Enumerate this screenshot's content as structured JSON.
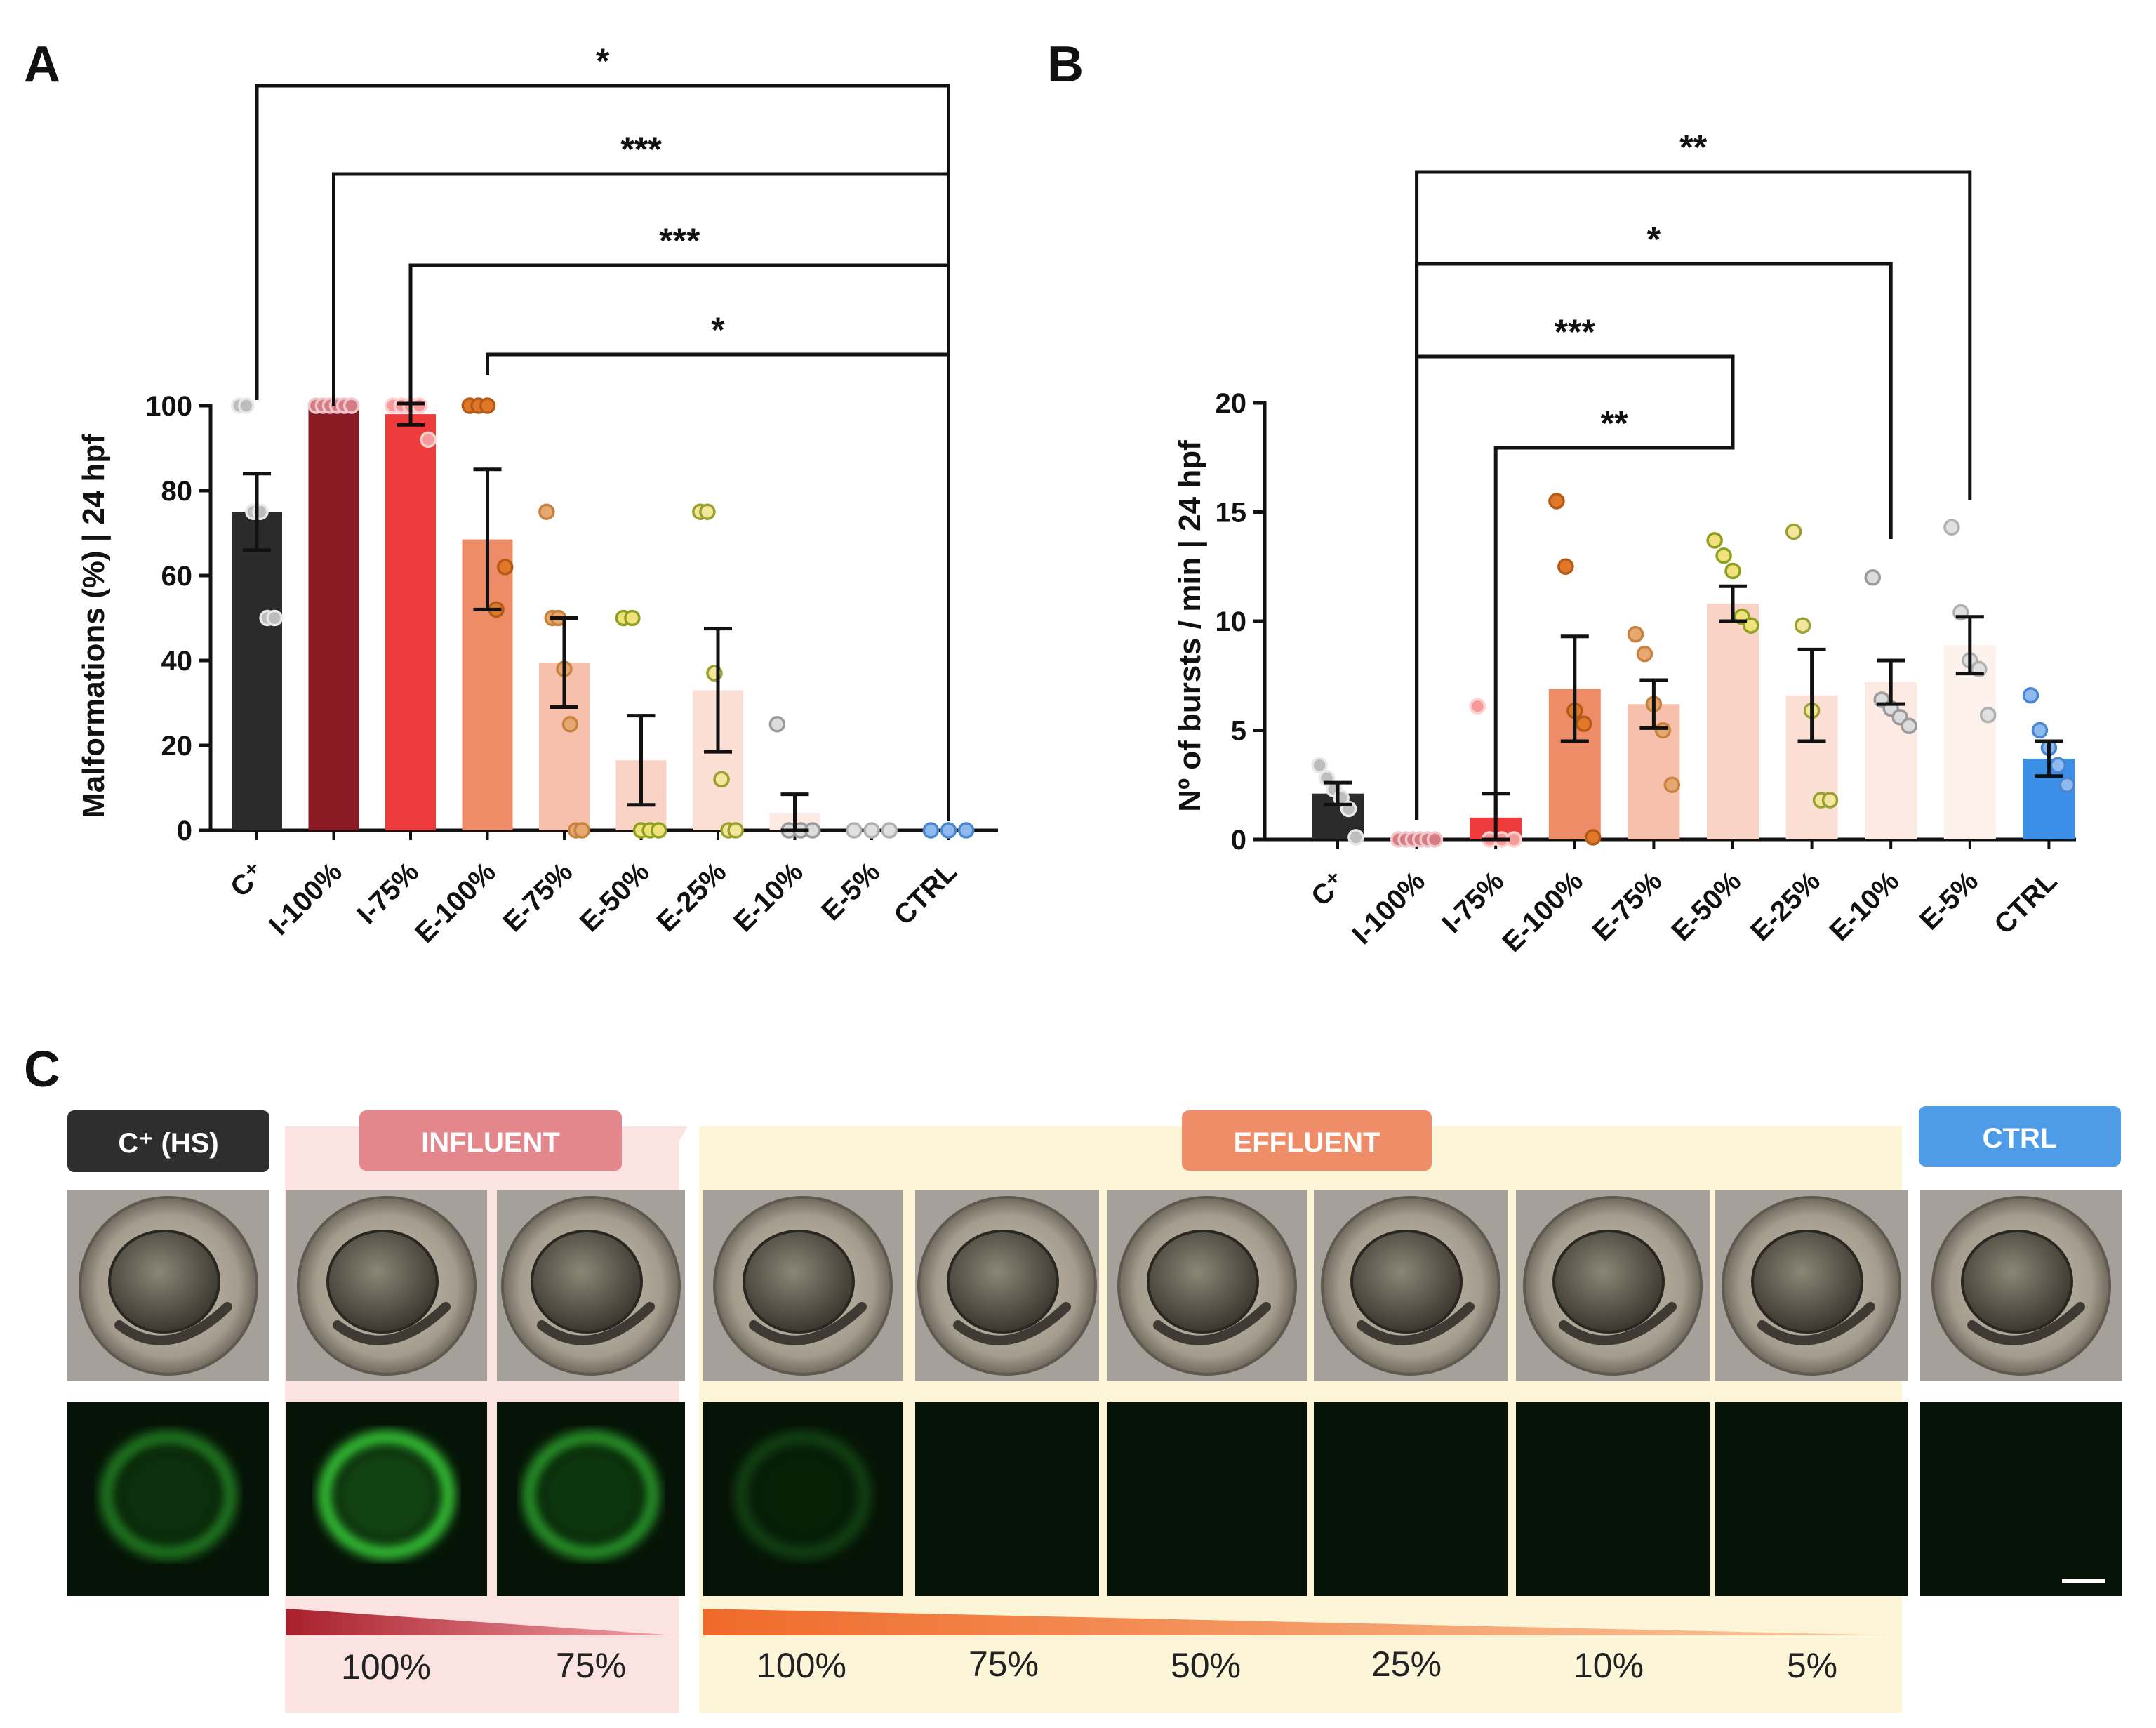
{
  "colors": {
    "cpos": "#2b2b2b",
    "i100": "#8b1a24",
    "i75": "#ee3b3b",
    "e100": "#ef8c68",
    "e75": "#f6c0ad",
    "e50": "#f9d4c6",
    "e25": "#fbdfd5",
    "e10": "#fceae3",
    "e5": "#fdf1ec",
    "ctrl": "#3b8fe6",
    "influent_band": "#fbe3e1",
    "effluent_band": "#fdf5d8"
  },
  "chart_data": [
    {
      "panel": "A",
      "type": "bar",
      "ylabel": "Malformations (%) | 24 hpf",
      "ylim": [
        0,
        100
      ],
      "yticks": [
        "0",
        "20",
        "40",
        "60",
        "80",
        "100"
      ],
      "categories": [
        "C⁺",
        "I-100%",
        "I-75%",
        "E-100%",
        "E-75%",
        "E-50%",
        "E-25%",
        "E-10%",
        "E-5%",
        "CTRL"
      ],
      "values": [
        75,
        100,
        98,
        68.5,
        39.5,
        16.5,
        33,
        4,
        0,
        0
      ],
      "errors": [
        9,
        0,
        2.5,
        16.5,
        10.5,
        10.5,
        14.5,
        4.5,
        0,
        0
      ],
      "points": [
        [
          100,
          100,
          75,
          75,
          50,
          50
        ],
        [
          100,
          100,
          100,
          100,
          100,
          100
        ],
        [
          100,
          100,
          100,
          100,
          92
        ],
        [
          100,
          100,
          100,
          52,
          62
        ],
        [
          75,
          50,
          50,
          38,
          25,
          0,
          0
        ],
        [
          50,
          50,
          0,
          0,
          0
        ],
        [
          75,
          75,
          37,
          12,
          0,
          0
        ],
        [
          25,
          0,
          0,
          0
        ],
        [
          0,
          0,
          0
        ],
        [
          0,
          0,
          0
        ]
      ],
      "significance": [
        {
          "from": "C⁺",
          "to": "CTRL",
          "label": "*"
        },
        {
          "from": "I-100%",
          "to": "CTRL",
          "label": "***"
        },
        {
          "from": "I-75%",
          "to": "CTRL",
          "label": "***"
        },
        {
          "from": "E-100%",
          "to": "CTRL",
          "label": "*"
        }
      ]
    },
    {
      "panel": "B",
      "type": "bar",
      "ylabel": "Nº of bursts / min | 24 hpf",
      "ylim": [
        0,
        20
      ],
      "yticks": [
        "0",
        "5",
        "10",
        "15",
        "20"
      ],
      "categories": [
        "C⁺",
        "I-100%",
        "I-75%",
        "E-100%",
        "E-75%",
        "E-50%",
        "E-25%",
        "E-10%",
        "E-5%",
        "CTRL"
      ],
      "values": [
        2.1,
        0,
        1,
        6.9,
        6.2,
        10.8,
        6.6,
        7.2,
        8.9,
        3.7
      ],
      "errors": [
        0.5,
        0,
        1.1,
        2.4,
        1.1,
        0.8,
        2.1,
        1,
        1.3,
        0.8
      ],
      "points": [
        [
          3.4,
          2.8,
          2.3,
          1.9,
          1.4,
          0.1
        ],
        [
          0,
          0,
          0,
          0,
          0,
          0
        ],
        [
          6.1,
          0,
          0,
          0
        ],
        [
          15.5,
          12.5,
          5.9,
          5.3,
          0.1
        ],
        [
          9.4,
          8.5,
          6.2,
          5.0,
          2.5
        ],
        [
          13.7,
          13.0,
          12.3,
          10.2,
          9.8
        ],
        [
          14.1,
          9.8,
          5.9,
          1.8,
          1.8
        ],
        [
          12.0,
          6.4,
          6.0,
          5.6,
          5.2
        ],
        [
          14.3,
          10.4,
          8.2,
          7.8,
          5.7
        ],
        [
          6.6,
          5.0,
          4.2,
          3.4,
          2.5
        ]
      ],
      "significance": [
        {
          "from": "I-100%",
          "to": "E-5%",
          "label": "**"
        },
        {
          "from": "I-100%",
          "to": "E-10%",
          "label": "*"
        },
        {
          "from": "I-100%",
          "to": "E-50%",
          "label": "***"
        },
        {
          "from": "I-75%",
          "to": "E-50%",
          "label": "**"
        }
      ]
    }
  ],
  "panels": {
    "a_label": "A",
    "b_label": "B",
    "c_label": "C"
  },
  "panel_c": {
    "group_labels": {
      "cpos": "C⁺ (HS)",
      "influent": "INFLUENT",
      "effluent": "EFFLUENT",
      "ctrl": "CTRL"
    },
    "influent_percentages": [
      "100%",
      "75%"
    ],
    "effluent_percentages": [
      "100%",
      "75%",
      "50%",
      "25%",
      "10%",
      "5%"
    ],
    "fluorescence_intensity": [
      0.55,
      0.95,
      0.7,
      0.25,
      0,
      0,
      0,
      0,
      0,
      0
    ],
    "embryo_count": 10
  }
}
